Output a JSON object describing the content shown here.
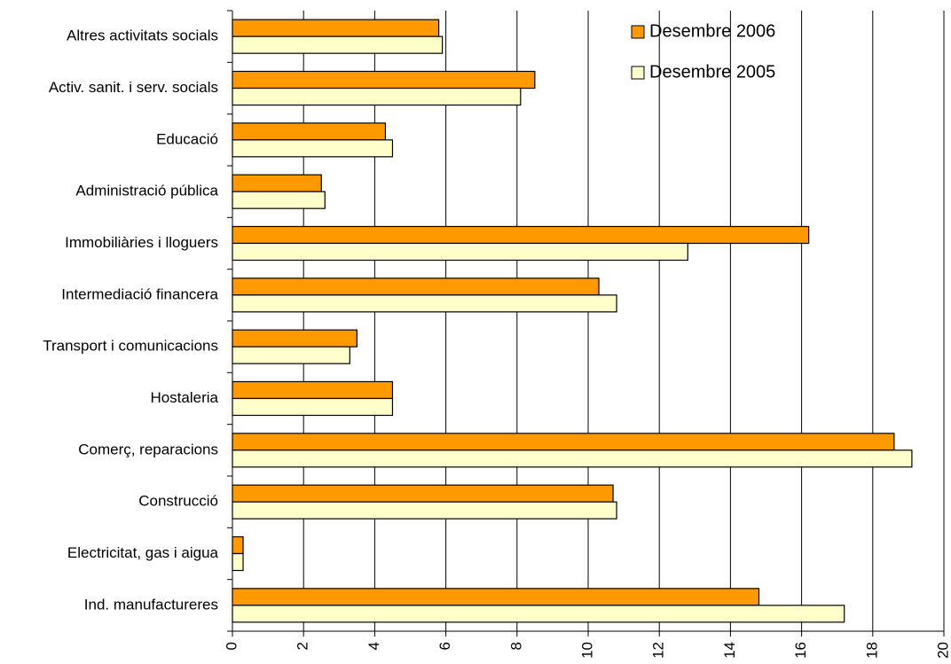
{
  "chart_data": {
    "type": "bar",
    "orientation": "horizontal",
    "categories": [
      "Ind. manufactureres",
      "Electricitat, gas i aigua",
      "Construcció",
      "Comerç, reparacions",
      "Hostaleria",
      "Transport i comunicacions",
      "Intermediació financera",
      "Immobiliàries i lloguers",
      "Administració pública",
      "Educació",
      "Activ. sanit. i serv. socials",
      "Altres activitats socials"
    ],
    "series": [
      {
        "name": "Desembre 2006",
        "color": "#ff9900",
        "values": [
          14.8,
          0.3,
          10.7,
          18.6,
          4.5,
          3.5,
          10.3,
          16.2,
          2.5,
          4.3,
          8.5,
          5.8
        ]
      },
      {
        "name": "Desembre 2005",
        "color": "#ffffcc",
        "values": [
          17.2,
          0.3,
          10.8,
          19.1,
          4.5,
          3.3,
          10.8,
          12.8,
          2.6,
          4.5,
          8.1,
          5.9
        ]
      }
    ],
    "xlim": [
      0,
      20
    ],
    "xticks": [
      "0",
      "2",
      "4",
      "6",
      "8",
      "10",
      "12",
      "14",
      "16",
      "18",
      "20"
    ],
    "grid": true,
    "legend": "top-right",
    "title": "",
    "xlabel": "",
    "ylabel": ""
  }
}
